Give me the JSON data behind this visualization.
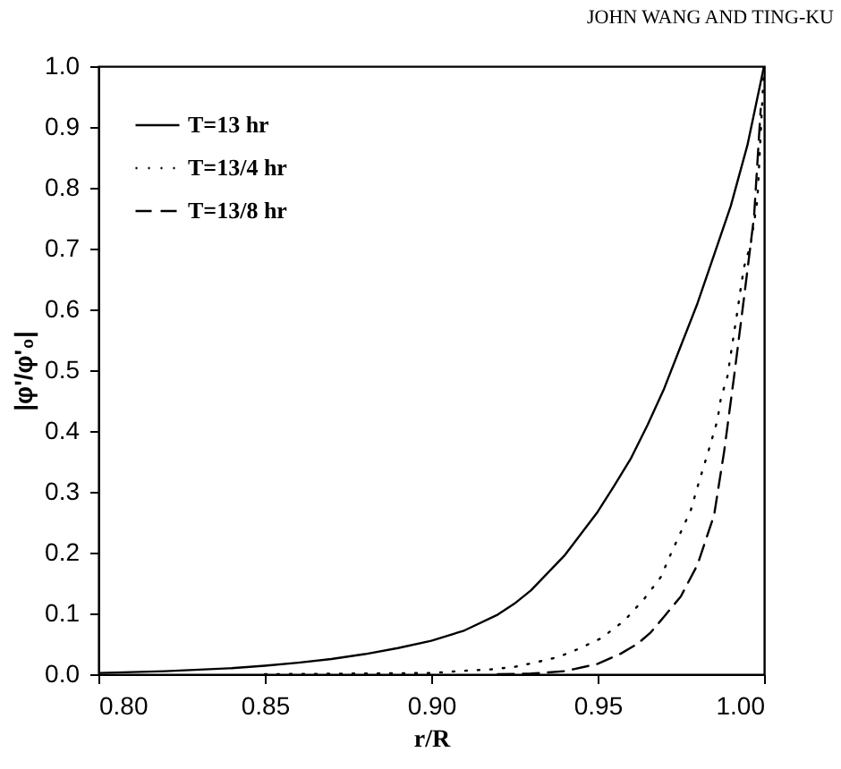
{
  "chart_data": {
    "type": "line",
    "xlabel": "r/R",
    "ylabel": "|φ'/φ'₀|",
    "annotations": [
      "JOHN WANG AND TING-KU"
    ],
    "xlim": [
      0.8,
      1.0
    ],
    "xticks": [
      {
        "value": 0.8,
        "label": "0.80"
      },
      {
        "value": 0.85,
        "label": "0.85"
      },
      {
        "value": 0.9,
        "label": "0.90"
      },
      {
        "value": 0.95,
        "label": "0.95"
      },
      {
        "value": 1.0,
        "label": "1.00"
      }
    ],
    "ylim": [
      0,
      1.0
    ],
    "yticks": [
      {
        "value": 0,
        "label": "0.0"
      },
      0.1,
      0.2,
      0.3,
      0.4,
      0.5,
      0.6,
      0.7,
      0.8,
      0.9,
      {
        "value": 1.0,
        "label": "1.0"
      }
    ],
    "legend": "top left",
    "grid": false,
    "series": [
      {
        "name": "T=13 hr",
        "color": "#000000",
        "line_style": "solid",
        "x": [
          0.8,
          0.82,
          0.84,
          0.85,
          0.86,
          0.87,
          0.88,
          0.89,
          0.9,
          0.91,
          0.92,
          0.925,
          0.93,
          0.94,
          0.95,
          0.955,
          0.96,
          0.965,
          0.97,
          0.975,
          0.98,
          0.985,
          0.99,
          0.995,
          1.0
        ],
        "values": [
          0.002,
          0.005,
          0.01,
          0.014,
          0.019,
          0.025,
          0.033,
          0.043,
          0.055,
          0.072,
          0.098,
          0.116,
          0.138,
          0.195,
          0.267,
          0.31,
          0.355,
          0.41,
          0.47,
          0.54,
          0.61,
          0.69,
          0.77,
          0.87,
          1.0
        ]
      },
      {
        "name": "T=13/4 hr",
        "color": "#000000",
        "line_style": "dotted",
        "x": [
          0.85,
          0.9,
          0.911,
          0.918,
          0.925,
          0.931,
          0.938,
          0.944,
          0.951,
          0.958,
          0.964,
          0.969,
          0.972,
          0.975,
          0.978,
          0.98,
          0.982,
          0.984,
          0.986,
          0.987,
          0.989,
          0.99,
          0.991,
          0.992,
          0.993,
          0.994,
          0.996,
          0.997,
          0.998,
          1.0
        ],
        "values": [
          0,
          0.002,
          0.006,
          0.008,
          0.012,
          0.019,
          0.028,
          0.041,
          0.059,
          0.088,
          0.124,
          0.16,
          0.198,
          0.234,
          0.27,
          0.308,
          0.344,
          0.38,
          0.418,
          0.453,
          0.49,
          0.526,
          0.562,
          0.597,
          0.635,
          0.67,
          0.708,
          0.743,
          0.78,
          1.0
        ]
      },
      {
        "name": "T=13/8 hr",
        "color": "#000000",
        "line_style": "dashed",
        "x": [
          0.92,
          0.93,
          0.94,
          0.95,
          0.957,
          0.962,
          0.966,
          0.97,
          0.975,
          0.98,
          0.985,
          0.988,
          0.991,
          0.994,
          0.997,
          0.999
        ],
        "values": [
          0,
          0.001,
          0.005,
          0.017,
          0.034,
          0.05,
          0.069,
          0.095,
          0.128,
          0.18,
          0.262,
          0.366,
          0.49,
          0.62,
          0.753,
          0.93
        ]
      }
    ]
  }
}
